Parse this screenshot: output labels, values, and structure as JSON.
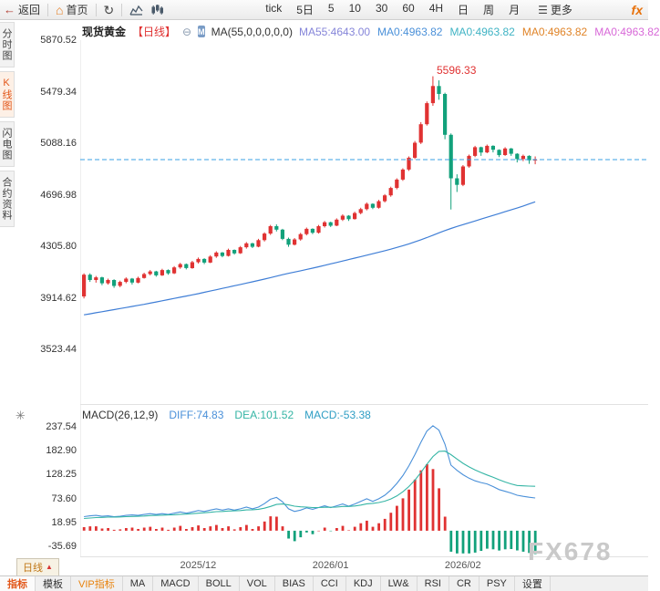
{
  "toolbar": {
    "back": "返回",
    "home": "首页",
    "more": "更多",
    "logo": "fx",
    "periods": [
      "tick",
      "5日",
      "5",
      "10",
      "30",
      "60",
      "4H",
      "日",
      "周",
      "月"
    ]
  },
  "icons": {
    "back-arrow-icon": "←",
    "home-icon": "⌂",
    "refresh-icon": "↻",
    "menu-icon": "☰",
    "minus-circle-icon": "⊖",
    "ma-badge-icon": "M",
    "indicator-settings-icon": "✳",
    "up-triangle-icon": "▲",
    "area-chart-icon": "css-shape",
    "kline-chart-icon": "css-shape"
  },
  "sidebar": {
    "items": [
      {
        "label": "分时图",
        "active": false
      },
      {
        "label": "K线图",
        "active": true
      },
      {
        "label": "闪电图",
        "active": false
      },
      {
        "label": "合约资料",
        "active": false
      }
    ]
  },
  "chart_header": {
    "symbol": "现货黄金",
    "period_tag": "【日线】",
    "ma_settings": "MA(55,0,0,0,0,0)",
    "ma_values": [
      {
        "label": "MA55:4643.00",
        "color": "#8585d9"
      },
      {
        "label": "MA0:4963.82",
        "color": "#4a90d9"
      },
      {
        "label": "MA0:4963.82",
        "color": "#3fb3c4"
      },
      {
        "label": "MA0:4963.82",
        "color": "#e08428"
      },
      {
        "label": "MA0:4963.82",
        "color": "#d868d8"
      }
    ]
  },
  "annotations": {
    "peak_price_label": "5596.33"
  },
  "macd_header": {
    "title": "MACD(26,12,9)",
    "diff": "DIFF:74.83",
    "dea": "DEA:101.52",
    "macd": "MACD:-53.38"
  },
  "bottom_tab": {
    "label": "日线"
  },
  "bottom_toolbar": [
    "指标",
    "模板",
    "VIP指标",
    "MA",
    "MACD",
    "BOLL",
    "VOL",
    "BIAS",
    "CCI",
    "KDJ",
    "LW&",
    "RSI",
    "CR",
    "PSY",
    "设置"
  ],
  "watermark": "FX678",
  "chart_data": {
    "type": "candlestick",
    "title": "现货黄金 日线 (Spot Gold Daily)",
    "y_axis_ticks": [
      "5870.52",
      "5479.34",
      "5088.16",
      "4696.98",
      "4305.80",
      "3914.62",
      "3523.44"
    ],
    "x_month_markers": [
      {
        "label": "2025/12",
        "candle": 19
      },
      {
        "label": "2026/01",
        "candle": 41
      },
      {
        "label": "2026/02",
        "candle": 63
      }
    ],
    "current_price": 4963.82,
    "peak_price": 5596.33,
    "ma55_current": 4643.0,
    "candles": [
      [
        3925,
        4100,
        3910,
        4090
      ],
      [
        4090,
        4100,
        4035,
        4050
      ],
      [
        4050,
        4080,
        4030,
        4070
      ],
      [
        4070,
        4075,
        4010,
        4025
      ],
      [
        4025,
        4060,
        4015,
        4050
      ],
      [
        4050,
        4055,
        3990,
        4005
      ],
      [
        4005,
        4045,
        3995,
        4035
      ],
      [
        4035,
        4070,
        4025,
        4060
      ],
      [
        4060,
        4065,
        4015,
        4030
      ],
      [
        4030,
        4075,
        4025,
        4065
      ],
      [
        4065,
        4105,
        4060,
        4095
      ],
      [
        4095,
        4125,
        4085,
        4115
      ],
      [
        4115,
        4120,
        4075,
        4085
      ],
      [
        4085,
        4135,
        4080,
        4125
      ],
      [
        4125,
        4130,
        4090,
        4100
      ],
      [
        4100,
        4155,
        4095,
        4145
      ],
      [
        4145,
        4180,
        4135,
        4170
      ],
      [
        4170,
        4175,
        4130,
        4140
      ],
      [
        4140,
        4195,
        4135,
        4185
      ],
      [
        4185,
        4220,
        4175,
        4210
      ],
      [
        4210,
        4215,
        4170,
        4182
      ],
      [
        4182,
        4238,
        4178,
        4228
      ],
      [
        4228,
        4268,
        4218,
        4258
      ],
      [
        4258,
        4262,
        4222,
        4232
      ],
      [
        4232,
        4288,
        4228,
        4278
      ],
      [
        4278,
        4282,
        4242,
        4252
      ],
      [
        4252,
        4308,
        4248,
        4298
      ],
      [
        4298,
        4338,
        4288,
        4328
      ],
      [
        4328,
        4332,
        4292,
        4302
      ],
      [
        4302,
        4362,
        4298,
        4352
      ],
      [
        4352,
        4412,
        4342,
        4402
      ],
      [
        4402,
        4468,
        4392,
        4458
      ],
      [
        4458,
        4472,
        4418,
        4432
      ],
      [
        4432,
        4438,
        4352,
        4362
      ],
      [
        4362,
        4372,
        4302,
        4318
      ],
      [
        4318,
        4368,
        4312,
        4358
      ],
      [
        4358,
        4408,
        4348,
        4398
      ],
      [
        4398,
        4448,
        4388,
        4438
      ],
      [
        4438,
        4442,
        4398,
        4408
      ],
      [
        4408,
        4468,
        4402,
        4458
      ],
      [
        4458,
        4498,
        4448,
        4488
      ],
      [
        4488,
        4492,
        4452,
        4462
      ],
      [
        4462,
        4518,
        4458,
        4508
      ],
      [
        4508,
        4548,
        4498,
        4538
      ],
      [
        4538,
        4542,
        4498,
        4512
      ],
      [
        4512,
        4568,
        4508,
        4558
      ],
      [
        4558,
        4598,
        4548,
        4588
      ],
      [
        4588,
        4638,
        4578,
        4628
      ],
      [
        4628,
        4632,
        4588,
        4598
      ],
      [
        4598,
        4658,
        4592,
        4648
      ],
      [
        4648,
        4702,
        4638,
        4692
      ],
      [
        4692,
        4758,
        4682,
        4748
      ],
      [
        4748,
        4822,
        4738,
        4812
      ],
      [
        4812,
        4898,
        4802,
        4888
      ],
      [
        4888,
        4988,
        4878,
        4978
      ],
      [
        4978,
        5105,
        4968,
        5092
      ],
      [
        5092,
        5248,
        5082,
        5232
      ],
      [
        5232,
        5405,
        5222,
        5392
      ],
      [
        5392,
        5596.33,
        5372,
        5522
      ],
      [
        5522,
        5565,
        5418,
        5462
      ],
      [
        5462,
        5472,
        5118,
        5152
      ],
      [
        5152,
        5162,
        4585,
        4822
      ],
      [
        4822,
        4852,
        4718,
        4772
      ],
      [
        4772,
        4922,
        4762,
        4912
      ],
      [
        4912,
        5002,
        4902,
        4992
      ],
      [
        4992,
        5068,
        4982,
        5058
      ],
      [
        5058,
        5062,
        4992,
        5018
      ],
      [
        5018,
        5078,
        5012,
        5068
      ],
      [
        5068,
        5072,
        5018,
        5038
      ],
      [
        5038,
        5042,
        4982,
        4998
      ],
      [
        4998,
        5058,
        4992,
        5048
      ],
      [
        5048,
        5052,
        4992,
        5008
      ],
      [
        5008,
        5012,
        4942,
        4968
      ],
      [
        4968,
        5002,
        4952,
        4992
      ],
      [
        4992,
        4996,
        4932,
        4958
      ],
      [
        4958,
        4988,
        4928,
        4963.82
      ]
    ],
    "ma55": [
      3785,
      3793,
      3801,
      3809,
      3817,
      3825,
      3833,
      3841,
      3849,
      3857,
      3865,
      3874,
      3883,
      3892,
      3901,
      3910,
      3919,
      3928,
      3937,
      3946,
      3956,
      3966,
      3976,
      3986,
      3996,
      4006,
      4016,
      4026,
      4036,
      4046,
      4057,
      4068,
      4079,
      4090,
      4100,
      4110,
      4120,
      4130,
      4140,
      4150,
      4161,
      4172,
      4183,
      4194,
      4205,
      4216,
      4227,
      4238,
      4249,
      4260,
      4272,
      4284,
      4297,
      4310,
      4324,
      4339,
      4355,
      4372,
      4390,
      4408,
      4425,
      4441,
      4456,
      4470,
      4484,
      4498,
      4512,
      4526,
      4540,
      4554,
      4568,
      4582,
      4596,
      4611,
      4627,
      4643
    ],
    "macd": {
      "params": [
        26,
        12,
        9
      ],
      "diff_current": 74.83,
      "dea_current": 101.52,
      "macd_current": -53.38,
      "y_axis_ticks": [
        "237.54",
        "182.90",
        "128.25",
        "73.60",
        "18.95",
        "-35.69"
      ],
      "bar_rule": "bar = 2*(diff-dea)",
      "diff": [
        32,
        34,
        35,
        33,
        34,
        32,
        33,
        35,
        36,
        35,
        37,
        39,
        37,
        39,
        37,
        40,
        43,
        40,
        43,
        46,
        44,
        47,
        50,
        47,
        50,
        47,
        50,
        54,
        50,
        54,
        62,
        72,
        76,
        66,
        50,
        44,
        47,
        52,
        49,
        53,
        57,
        53,
        57,
        61,
        56,
        61,
        67,
        73,
        67,
        73,
        81,
        93,
        108,
        126,
        148,
        174,
        202,
        228,
        240,
        230,
        198,
        150,
        138,
        128,
        120,
        114,
        110,
        107,
        101,
        94,
        90,
        86,
        81,
        78.5,
        76.5,
        74.83
      ],
      "dea": [
        28,
        29,
        30,
        30.5,
        31,
        31,
        31.5,
        32,
        32.5,
        33,
        33.5,
        34.5,
        35,
        35.5,
        36,
        36.5,
        37.5,
        38,
        39,
        40,
        41,
        42,
        43.5,
        44,
        45,
        45.5,
        46,
        47.5,
        48,
        49,
        51.5,
        55.5,
        60,
        61,
        59,
        56,
        54.5,
        54,
        53,
        53,
        53.5,
        53.5,
        54,
        55.5,
        55.5,
        56.5,
        58.5,
        61.5,
        62.5,
        64.5,
        67.5,
        72.5,
        79.5,
        89,
        101,
        115.5,
        133,
        152,
        169.5,
        181.5,
        182,
        174,
        164,
        154,
        146,
        139,
        133,
        127.5,
        122.3,
        116.6,
        111.3,
        107,
        103.5,
        102.5,
        102,
        101.52
      ]
    },
    "colors": {
      "up": "#e03232",
      "down": "#12a17b",
      "ma55_line": "#3f7ed6",
      "current_price_line": "#38a0e4",
      "diff_line": "#4a90d9",
      "dea_line": "#35b5a5",
      "bar_up": "#e03232",
      "bar_down": "#12a17b"
    }
  }
}
